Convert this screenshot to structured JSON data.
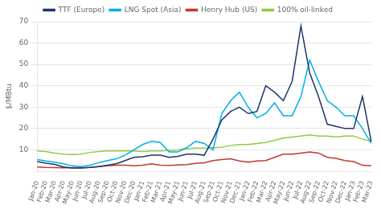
{
  "chart_data": {
    "type": "line",
    "ylabel": "$/MBtu",
    "ylim": [
      0,
      70
    ],
    "yticks": [
      10,
      20,
      30,
      40,
      50,
      60,
      70
    ],
    "grid": true,
    "legend": "top",
    "categories": [
      "Jan-20",
      "Feb-20",
      "Mar-20",
      "Apr-20",
      "May-20",
      "Jun-20",
      "Jul-20",
      "Aug-20",
      "Sep-20",
      "Oct-20",
      "Nov-20",
      "Dec-20",
      "Jan-21",
      "Feb-21",
      "Mar-21",
      "Apr-21",
      "May-21",
      "Jun-21",
      "Jul-21",
      "Aug-21",
      "Sep-21",
      "Oct-21",
      "Nov-21",
      "Dec-21",
      "Jan-22",
      "Feb-22",
      "Mar-22",
      "Apr-22",
      "May-22",
      "Jun-22",
      "Jul-22",
      "Aug-22",
      "Sep-22",
      "Oct-22",
      "Nov-22",
      "Dec-22",
      "Jan-23",
      "Feb-23",
      "Mar-23"
    ],
    "series": [
      {
        "name": "TTF (Europe)",
        "color": "#1a3668",
        "values": [
          4.5,
          3.8,
          3.2,
          2.0,
          1.5,
          1.5,
          1.8,
          2.2,
          2.8,
          3.5,
          5.0,
          6.5,
          6.8,
          7.5,
          7.5,
          6.5,
          7.0,
          8.0,
          8.0,
          7.5,
          15.0,
          24.0,
          28.0,
          30.0,
          27.0,
          28.0,
          40.0,
          37.0,
          33.0,
          42.0,
          68.0,
          46.0,
          35.0,
          22.0,
          21.0,
          20.0,
          20.0,
          35.0,
          14.0
        ]
      },
      {
        "name": "LNG Spot (Asia)",
        "color": "#00adef",
        "values": [
          5.5,
          4.8,
          4.2,
          3.5,
          2.5,
          2.2,
          2.8,
          4.0,
          5.0,
          5.8,
          7.5,
          10.0,
          12.5,
          14.0,
          13.5,
          9.0,
          9.0,
          11.0,
          14.0,
          13.0,
          10.0,
          27.0,
          33.0,
          37.0,
          30.0,
          25.0,
          27.0,
          32.0,
          26.0,
          26.0,
          35.0,
          52.0,
          42.0,
          33.0,
          30.0,
          26.0,
          26.0,
          20.0,
          13.0
        ]
      },
      {
        "name": "Henry Hub (US)",
        "color": "#c0392b",
        "values": [
          2.0,
          1.8,
          1.7,
          1.6,
          1.7,
          1.6,
          1.8,
          2.2,
          2.5,
          2.8,
          2.8,
          2.5,
          2.8,
          3.5,
          2.8,
          2.7,
          2.9,
          3.1,
          3.7,
          4.0,
          5.0,
          5.5,
          5.8,
          4.8,
          4.2,
          4.8,
          5.0,
          6.5,
          8.0,
          8.0,
          8.5,
          9.0,
          8.5,
          6.5,
          6.0,
          5.0,
          4.5,
          2.8,
          2.5
        ]
      },
      {
        "name": "100% oil-linked",
        "color": "#92c940",
        "values": [
          9.5,
          9.2,
          8.5,
          8.0,
          7.8,
          8.0,
          8.8,
          9.2,
          9.5,
          9.5,
          9.5,
          9.5,
          9.2,
          9.5,
          9.5,
          9.8,
          10.0,
          10.5,
          10.8,
          10.8,
          11.0,
          11.2,
          12.0,
          12.5,
          12.5,
          13.0,
          13.5,
          14.5,
          15.5,
          16.0,
          16.5,
          17.0,
          16.5,
          16.5,
          16.0,
          16.5,
          16.5,
          15.0,
          14.0
        ]
      }
    ]
  }
}
